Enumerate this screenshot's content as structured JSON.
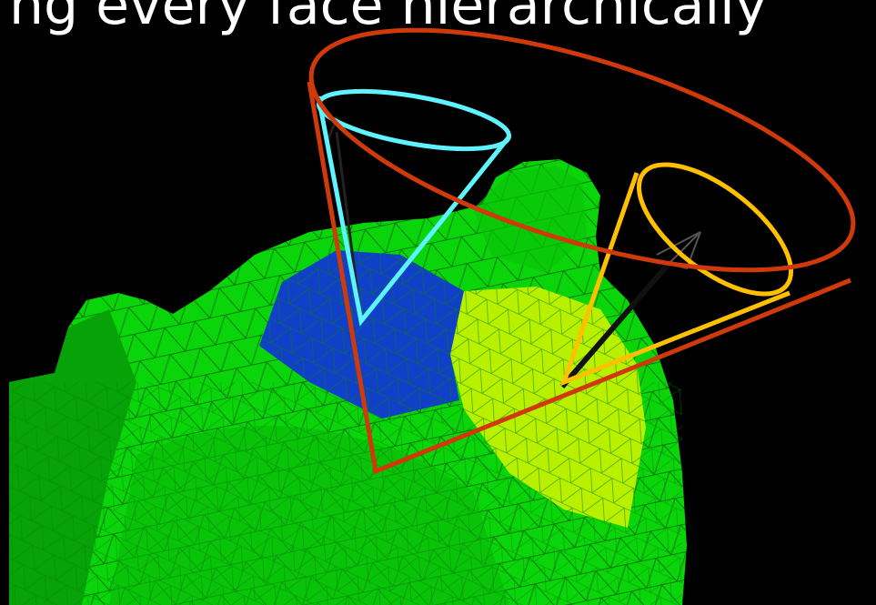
{
  "slide": {
    "caption": "ng every face hierarchically"
  }
}
